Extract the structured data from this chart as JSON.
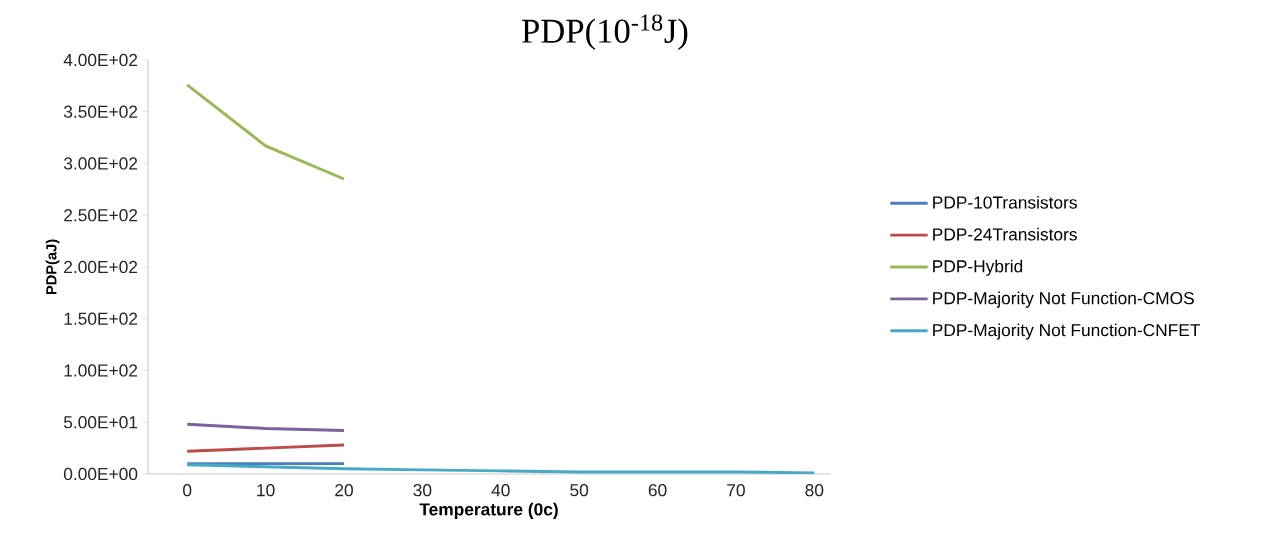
{
  "chart_data": {
    "type": "line",
    "title": "PDP(10$^{-18}$J)",
    "xlabel": "Temperature (0c)",
    "ylabel": "PDP(aJ)",
    "categories": [
      "0",
      "10",
      "20",
      "30",
      "40",
      "50",
      "60",
      "70",
      "80"
    ],
    "series": [
      {
        "name": "PDP-10Transistors",
        "color": "#4a7ebb",
        "values": [
          10,
          10,
          10,
          null,
          null,
          null,
          null,
          null,
          null
        ]
      },
      {
        "name": "PDP-24Transistors",
        "color": "#be4b48",
        "values": [
          22,
          25,
          28,
          null,
          null,
          null,
          null,
          null,
          null
        ]
      },
      {
        "name": "PDP-Hybrid",
        "color": "#98b954",
        "values": [
          376,
          317,
          285,
          null,
          null,
          null,
          null,
          null,
          null
        ]
      },
      {
        "name": "PDP-Majority Not Function-CMOS",
        "color": "#7d60a0",
        "values": [
          48,
          44,
          42,
          null,
          null,
          null,
          null,
          null,
          null
        ]
      },
      {
        "name": "PDP-Majority Not Function-CNFET",
        "color": "#46aac5",
        "values": [
          9,
          7,
          5,
          4,
          3,
          2,
          2,
          2,
          1
        ]
      }
    ],
    "ylim": [
      0,
      400
    ],
    "yticks": [
      {
        "value": 0,
        "label": "0.00E+00"
      },
      {
        "value": 50,
        "label": "5.00E+01"
      },
      {
        "value": 100,
        "label": "1.00E+02"
      },
      {
        "value": 150,
        "label": "1.50E+02"
      },
      {
        "value": 200,
        "label": "2.00E+02"
      },
      {
        "value": 250,
        "label": "2.50E+02"
      },
      {
        "value": 300,
        "label": "3.00E+02"
      },
      {
        "value": 350,
        "label": "3.50E+02"
      },
      {
        "value": 400,
        "label": "4.00E+02"
      }
    ],
    "grid": false,
    "legend": "right"
  }
}
